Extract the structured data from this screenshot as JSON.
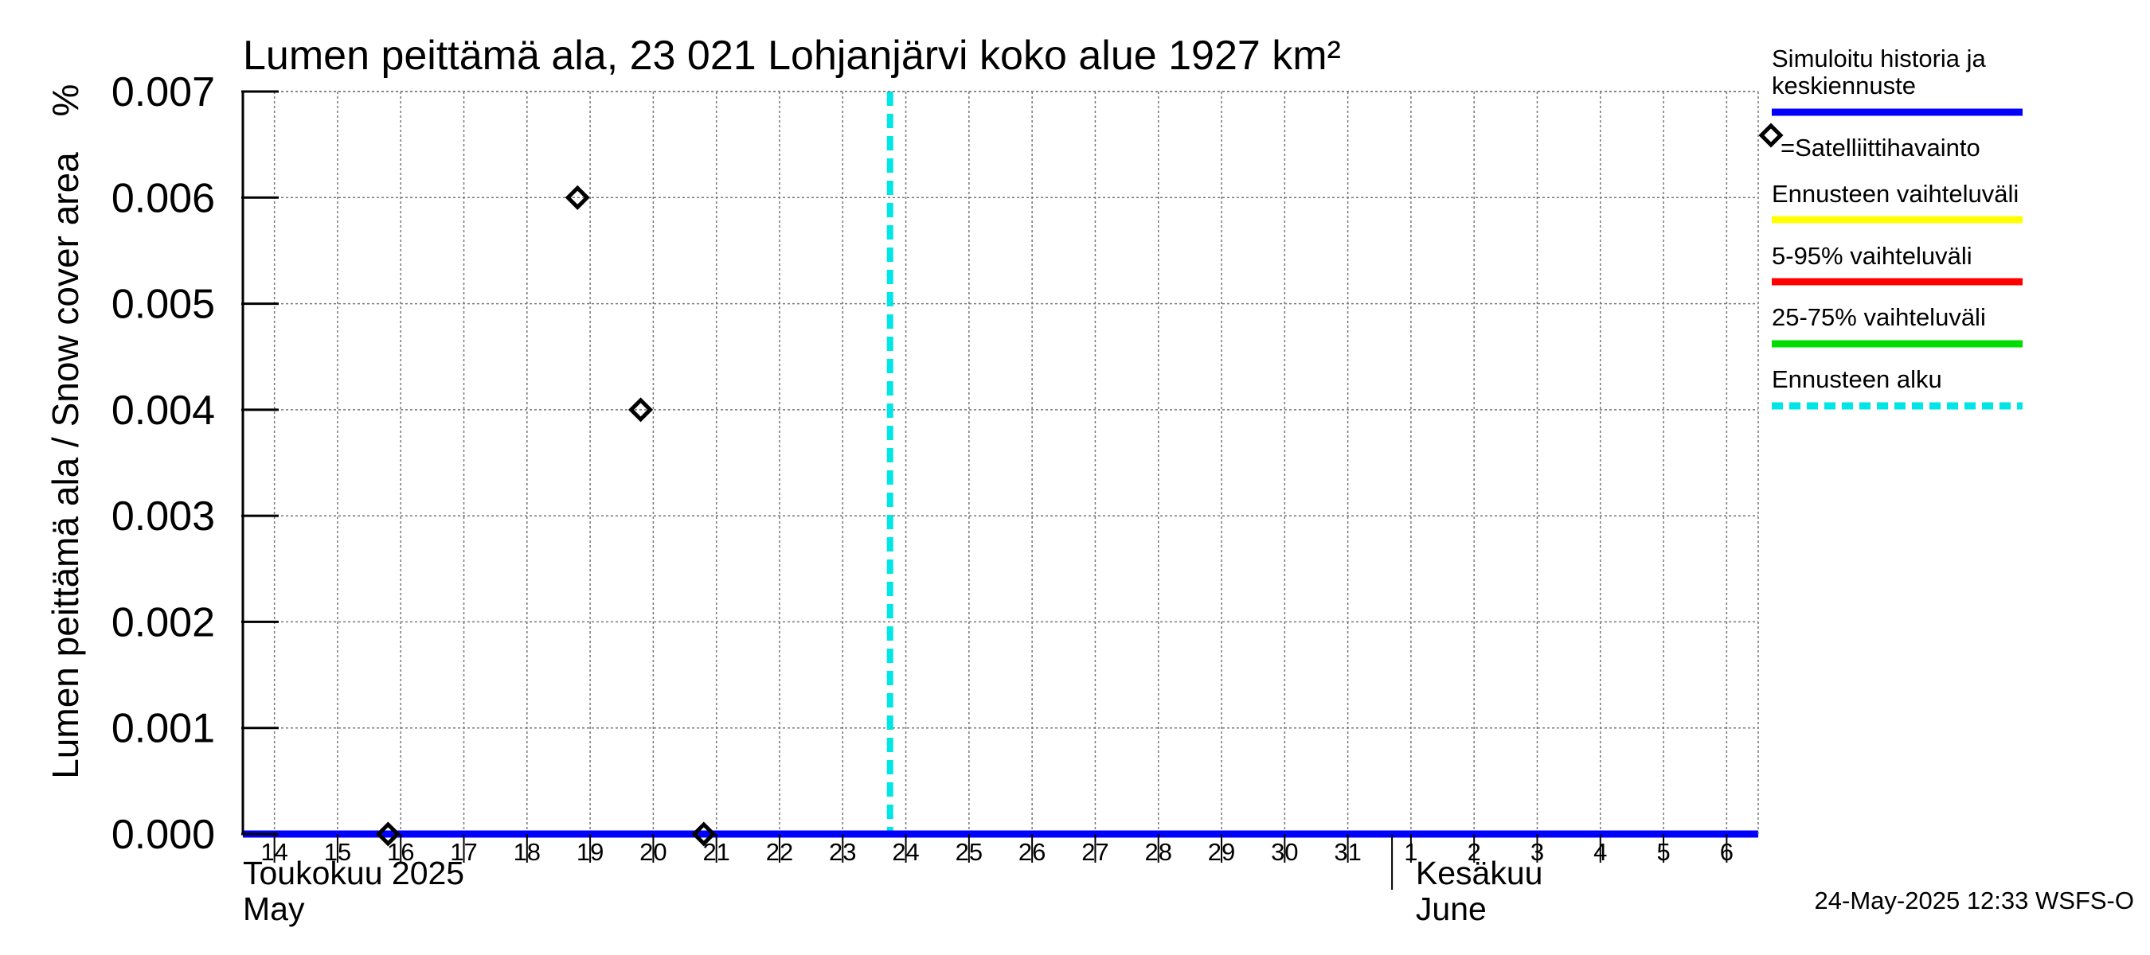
{
  "chart_data": {
    "type": "line",
    "title": "Lumen peittämä ala, 23 021 Lohjanjärvi koko alue 1927 km²",
    "ylabel": "Lumen peittämä ala / Snow cover area",
    "yunit": "%",
    "ylim": [
      0.0,
      0.007
    ],
    "yticks": [
      "0.000",
      "0.001",
      "0.002",
      "0.003",
      "0.004",
      "0.005",
      "0.006",
      "0.007"
    ],
    "x_day_range": [
      13.5,
      37.5
    ],
    "x_day_ticks": [
      14,
      15,
      16,
      17,
      18,
      19,
      20,
      21,
      22,
      23,
      24,
      25,
      26,
      27,
      28,
      29,
      30,
      31,
      32,
      33,
      34,
      35,
      36,
      37
    ],
    "x_tick_labels": [
      "14",
      "15",
      "16",
      "17",
      "18",
      "19",
      "20",
      "21",
      "22",
      "23",
      "24",
      "25",
      "26",
      "27",
      "28",
      "29",
      "30",
      "31",
      "1",
      "2",
      "3",
      "4",
      "5",
      "6"
    ],
    "month_labels": [
      {
        "fi": "Toukokuu  2025",
        "en": "May",
        "day": 13.5
      },
      {
        "fi": "Kesäkuu",
        "en": "June",
        "day": 32
      }
    ],
    "month_boundary_day": 31.7,
    "series": [
      {
        "name": "Simuloitu historia ja keskiennuste",
        "color": "#0000ff",
        "x": [
          13.5,
          37.5
        ],
        "y": [
          0.0,
          0.0
        ]
      }
    ],
    "observations": {
      "name": "Satelliittihavainto",
      "x": [
        15.8,
        18.8,
        19.8,
        20.8
      ],
      "y": [
        0.0,
        0.006,
        0.004,
        0.0
      ]
    },
    "forecast_start_day": 23.75,
    "legend": [
      {
        "label": "Simuloitu historia ja keskiennuste",
        "color": "#0000ff",
        "style": "line"
      },
      {
        "label": "=Satelliittihavainto",
        "color": "#000000",
        "style": "marker"
      },
      {
        "label": "Ennusteen vaihteluväli",
        "color": "#ffff00",
        "style": "line"
      },
      {
        "label": "5-95% vaihteluväli",
        "color": "#ff0000",
        "style": "line"
      },
      {
        "label": "25-75% vaihteluväli",
        "color": "#00dd00",
        "style": "line"
      },
      {
        "label": "Ennusteen alku",
        "color": "#00e5e5",
        "style": "dashed"
      }
    ],
    "footer": "24-May-2025 12:33 WSFS-O"
  }
}
